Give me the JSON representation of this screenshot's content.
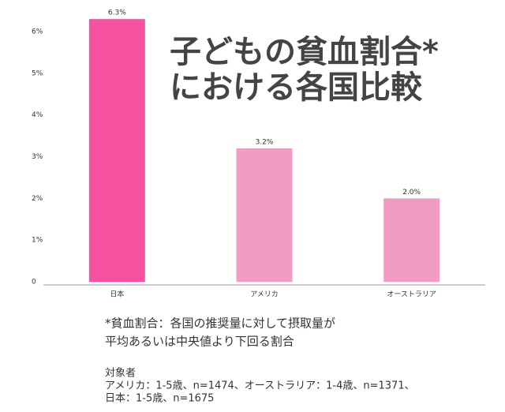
{
  "chart_data": {
    "type": "bar",
    "title": [
      "子どもの貧血割合*",
      "における各国比較"
    ],
    "categories": [
      "日本",
      "アメリカ",
      "オーストラリア"
    ],
    "values": [
      6.3,
      3.2,
      2.0
    ],
    "value_labels": [
      "6.3%",
      "3.2%",
      "2.0%"
    ],
    "colors": [
      "#f5529f",
      "#f29bc5",
      "#f29bc5"
    ],
    "ylim": [
      0,
      6
    ],
    "yticks": [
      0,
      {
        "value": 1,
        "label": "1%"
      },
      {
        "value": 2,
        "label": "2%"
      },
      {
        "value": 3,
        "label": "3%"
      },
      {
        "value": 4,
        "label": "4%"
      },
      {
        "value": 5,
        "label": "5%"
      },
      {
        "value": 6,
        "label": "6%"
      }
    ],
    "grid": false,
    "note": [
      "*貧血割合：各国の推奨量に対して摂取量が",
      "平均あるいは中央値より下回る割合"
    ],
    "subjects_label": "対象者",
    "subjects": [
      "アメリカ：1-5歳、n=1474、オーストラリア：1-4歳、n=1371、",
      "日本：1-5歳、n=1675"
    ]
  }
}
